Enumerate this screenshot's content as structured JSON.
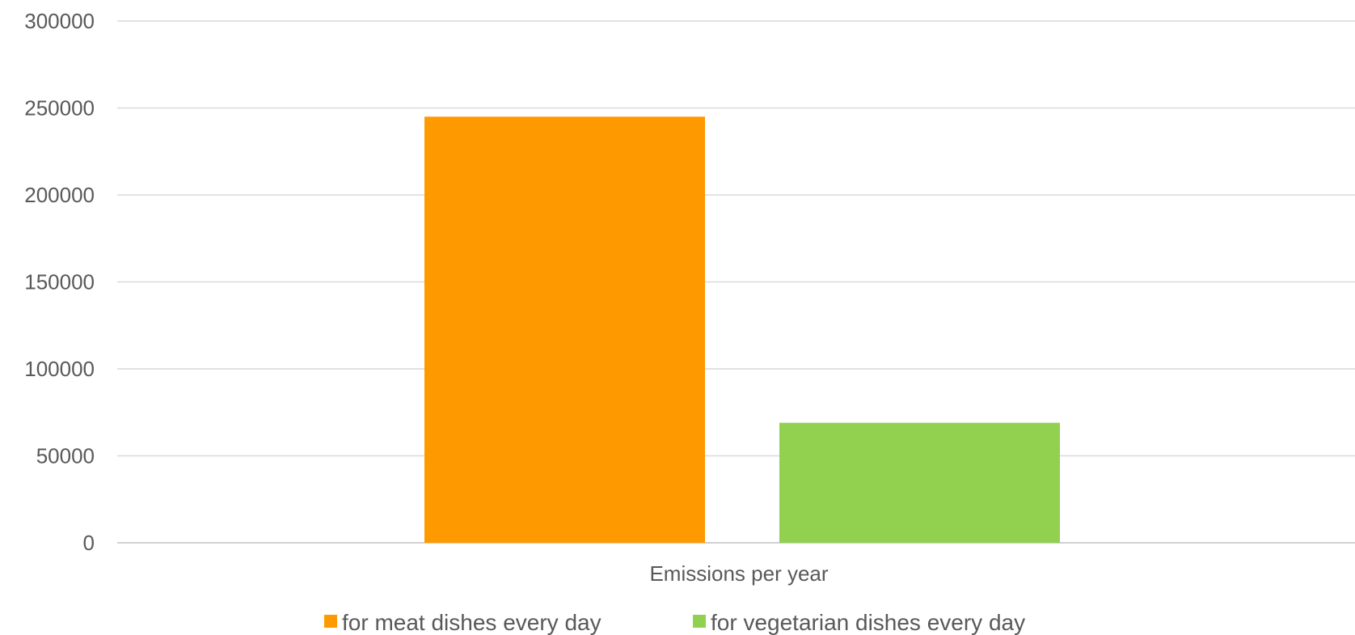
{
  "chart_data": {
    "type": "bar",
    "categories": [
      "Emissions per year"
    ],
    "series": [
      {
        "name": "for meat dishes every day",
        "values": [
          245000
        ],
        "color": "#FF9900"
      },
      {
        "name": "for vegetarian dishes every day",
        "values": [
          69000
        ],
        "color": "#92D050"
      }
    ],
    "ylim": [
      0,
      300000
    ],
    "yticks": [
      0,
      50000,
      100000,
      150000,
      200000,
      250000,
      300000
    ],
    "grid": true,
    "legend": "bottom"
  }
}
